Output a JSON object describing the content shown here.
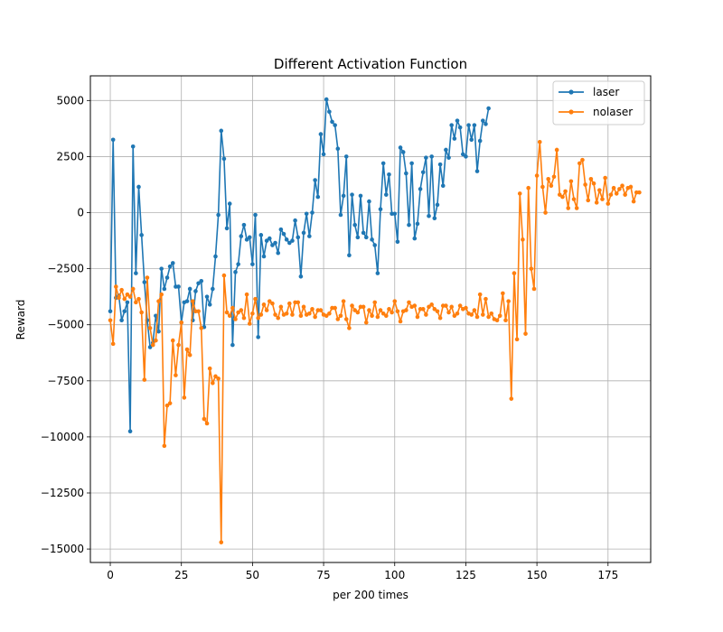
{
  "chart_data": {
    "type": "line",
    "title": "Different Activation Function",
    "xlabel": "per 200 times",
    "ylabel": "Reward",
    "xlim": [
      -7,
      190
    ],
    "ylim": [
      -15600,
      6100
    ],
    "xticks": [
      0,
      25,
      50,
      75,
      100,
      125,
      150,
      175
    ],
    "yticks": [
      -15000,
      -12500,
      -10000,
      -7500,
      -5000,
      -2500,
      0,
      2500,
      5000
    ],
    "grid": true,
    "legend_position": "top-right",
    "series": [
      {
        "name": "laser",
        "color": "#1f77b4",
        "values": [
          -4400,
          3250,
          -3800,
          -3700,
          -4800,
          -4400,
          -4000,
          -9750,
          2950,
          -2700,
          1150,
          -1000,
          -3100,
          -4800,
          -6000,
          -5800,
          -4600,
          -5300,
          -2500,
          -3400,
          -2900,
          -2400,
          -2250,
          -3300,
          -3300,
          -4900,
          -4000,
          -3950,
          -3400,
          -4800,
          -3500,
          -3150,
          -3050,
          -5100,
          -3750,
          -4100,
          -3400,
          -1950,
          -100,
          3650,
          2400,
          -700,
          400,
          -5900,
          -2650,
          -2300,
          -1050,
          -550,
          -1200,
          -1100,
          -2300,
          -100,
          -5550,
          -1000,
          -1950,
          -1250,
          -1150,
          -1450,
          -1350,
          -1800,
          -750,
          -950,
          -1200,
          -1350,
          -1250,
          -350,
          -1100,
          -2850,
          -900,
          -50,
          -1050,
          0,
          1450,
          700,
          3500,
          2600,
          5050,
          4500,
          4050,
          3900,
          2850,
          -100,
          750,
          2500,
          -1900,
          800,
          -550,
          -1100,
          750,
          -900,
          -1100,
          500,
          -1200,
          -1450,
          -2700,
          150,
          2200,
          800,
          1700,
          -50,
          -50,
          -1300,
          2900,
          2700,
          1750,
          -550,
          2200,
          -1150,
          -500,
          1050,
          1800,
          2450,
          -150,
          2500,
          -250,
          350,
          2150,
          1200,
          2800,
          2450,
          3900,
          3300,
          4100,
          3800,
          2600,
          2500,
          3900,
          3250,
          3900,
          1850,
          3200,
          4100,
          3950,
          4650
        ]
      },
      {
        "name": "nolaser",
        "color": "#ff7f0e",
        "values": [
          -4800,
          -5850,
          -3300,
          -3800,
          -3450,
          -3850,
          -3650,
          -3750,
          -3400,
          -4000,
          -3850,
          -4450,
          -7450,
          -2900,
          -5150,
          -5900,
          -5700,
          -3950,
          -3650,
          -10400,
          -8600,
          -8500,
          -5700,
          -7250,
          -5900,
          -4900,
          -8250,
          -6100,
          -6350,
          -3950,
          -4400,
          -4400,
          -5150,
          -9200,
          -9400,
          -6950,
          -7600,
          -7300,
          -7400,
          -14700,
          -2800,
          -4450,
          -4600,
          -4250,
          -4750,
          -4450,
          -4350,
          -4700,
          -3650,
          -4950,
          -4500,
          -3850,
          -4700,
          -4550,
          -4100,
          -4350,
          -3950,
          -4050,
          -4550,
          -4700,
          -4200,
          -4550,
          -4500,
          -4050,
          -4550,
          -4000,
          -4000,
          -4600,
          -4200,
          -4550,
          -4500,
          -4300,
          -4650,
          -4350,
          -4350,
          -4550,
          -4600,
          -4500,
          -4250,
          -4250,
          -4750,
          -4600,
          -3950,
          -4750,
          -5150,
          -4150,
          -4350,
          -4450,
          -4200,
          -4200,
          -4900,
          -4350,
          -4600,
          -4000,
          -4650,
          -4350,
          -4500,
          -4600,
          -4300,
          -4450,
          -3950,
          -4400,
          -4850,
          -4400,
          -4350,
          -4000,
          -4200,
          -4150,
          -4650,
          -4300,
          -4300,
          -4550,
          -4200,
          -4100,
          -4300,
          -4400,
          -4700,
          -4150,
          -4150,
          -4450,
          -4200,
          -4600,
          -4500,
          -4150,
          -4300,
          -4250,
          -4500,
          -4550,
          -4350,
          -4650,
          -3650,
          -4550,
          -3850,
          -4650,
          -4500,
          -4750,
          -4800,
          -4600,
          -3600,
          -4800,
          -3950,
          -8300,
          -2700,
          -5650,
          850,
          -1200,
          -5400,
          1100,
          -2500,
          -3400,
          1650,
          3150,
          1150,
          0,
          1500,
          1200,
          1600,
          2800,
          800,
          700,
          950,
          200,
          1400,
          600,
          200,
          2200,
          2350,
          1250,
          550,
          1500,
          1300,
          450,
          1000,
          600,
          1550,
          400,
          800,
          1100,
          850,
          1050,
          1200,
          800,
          1100,
          1150,
          500,
          900,
          900
        ]
      }
    ]
  }
}
